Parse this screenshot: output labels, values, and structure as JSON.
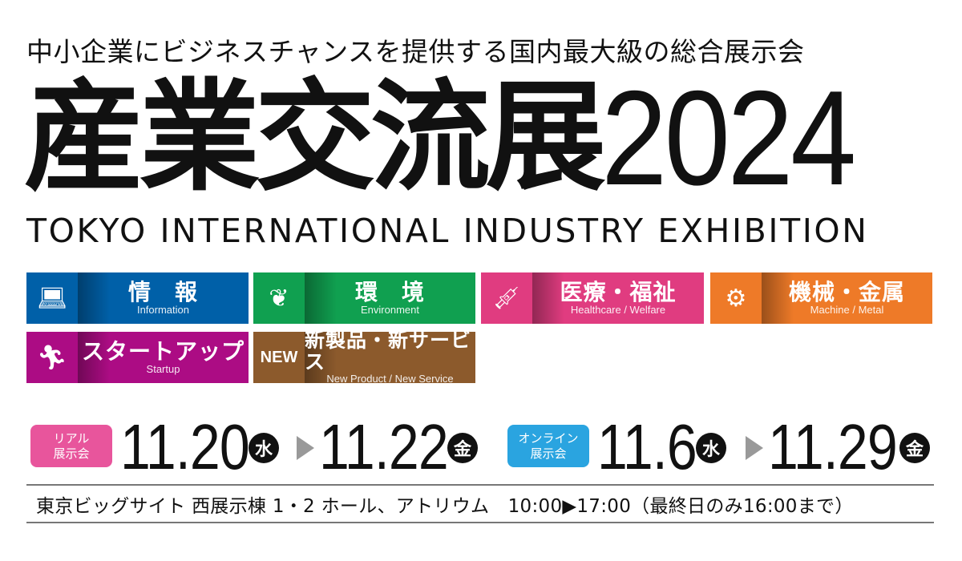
{
  "tagline": "中小企業にビジネスチャンスを提供する国内最大級の総合展示会",
  "title": {
    "jp": "産業交流展",
    "year": "2024"
  },
  "subtitle_en": "TOKYO INTERNATIONAL INDUSTRY EXHIBITION",
  "categories": [
    {
      "jp": "情　報",
      "en": "Information",
      "icon": "laptop-icon",
      "color": "#0060a8"
    },
    {
      "jp": "環　境",
      "en": "Environment",
      "icon": "leaf-icon",
      "color": "#10a050"
    },
    {
      "jp": "医療・福祉",
      "en": "Healthcare / Welfare",
      "icon": "syringe-icon",
      "color": "#e03c80"
    },
    {
      "jp": "機械・金属",
      "en": "Machine / Metal",
      "icon": "gears-icon",
      "color": "#ee7a28"
    },
    {
      "jp": "スタートアップ",
      "en": "Startup",
      "icon": "runner-icon",
      "color": "#ac0c84"
    },
    {
      "jp": "新製品・新サービス",
      "en": "New Product / New Service",
      "icon": "NEW",
      "color": "#8c5a2c"
    }
  ],
  "real": {
    "badge": [
      "リアル",
      "展示会"
    ],
    "badge_color": "#e8559c",
    "start": "11.20",
    "start_day": "水",
    "end": "11.22",
    "end_day": "金"
  },
  "online": {
    "badge": [
      "オンライン",
      "展示会"
    ],
    "badge_color": "#2aa4e0",
    "start": "11.6",
    "start_day": "水",
    "end": "11.29",
    "end_day": "金"
  },
  "venue": "東京ビッグサイト 西展示棟 1・2 ホール、アトリウム　10:00▶17:00（最終日のみ16:00まで）"
}
